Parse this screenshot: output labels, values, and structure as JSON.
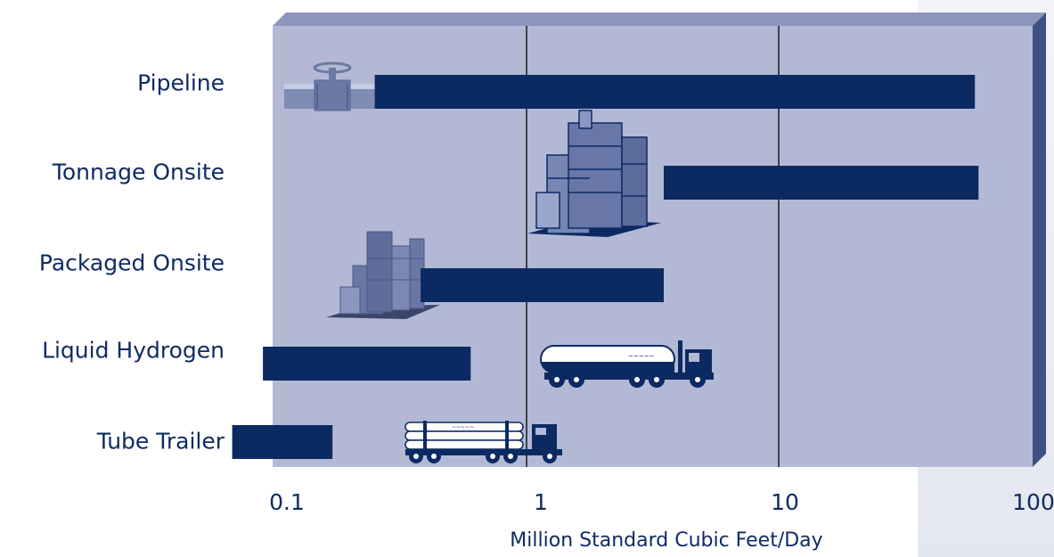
{
  "chart_data": {
    "type": "bar",
    "orientation": "horizontal",
    "style": "floating-range",
    "categories": [
      "Pipeline",
      "Tonnage Onsite",
      "Packaged Onsite",
      "Liquid Hydrogen",
      "Tube Trailer"
    ],
    "ranges": [
      {
        "category": "Pipeline",
        "min": 0.25,
        "max": 60
      },
      {
        "category": "Tonnage Onsite",
        "min": 3.5,
        "max": 62
      },
      {
        "category": "Packaged Onsite",
        "min": 0.38,
        "max": 3.5
      },
      {
        "category": "Liquid Hydrogen",
        "min": 0.09,
        "max": 0.6
      },
      {
        "category": "Tube Trailer",
        "min": 0.068,
        "max": 0.17
      }
    ],
    "xscale": "log",
    "xlim": [
      0.09,
      85
    ],
    "xticks": [
      {
        "value": 0.1,
        "label": "0.1"
      },
      {
        "value": 1,
        "label": "1"
      },
      {
        "value": 10,
        "label": "10"
      },
      {
        "value": 100,
        "label": "100"
      }
    ],
    "xlabel": "Million Standard Cubic Feet/Day",
    "ylabel": "",
    "title": "",
    "gridlines_at": [
      1,
      10
    ],
    "grid": true,
    "legend": "none",
    "colors": {
      "bar": "#0c2a62",
      "plot_face": "#b3b9d4",
      "plot_top": "#8d96bc",
      "plot_side": "#3e5184",
      "text": "#0f2b62",
      "gridline": "#1a1a1a"
    },
    "icons": [
      "valve-icon",
      "tonnage-plant-icon",
      "packaged-plant-icon",
      "tanker-truck-icon",
      "tube-trailer-truck-icon"
    ]
  }
}
